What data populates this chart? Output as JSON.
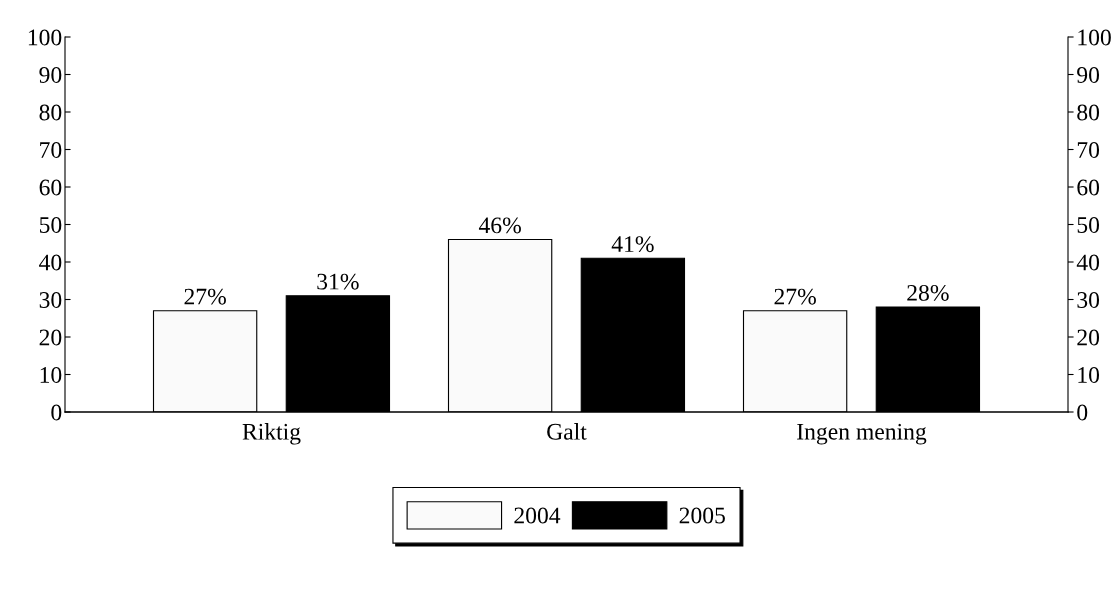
{
  "chart_data": {
    "type": "bar",
    "categories": [
      "Riktig",
      "Galt",
      "Ingen mening"
    ],
    "series": [
      {
        "name": "2004",
        "color": "#fafafa",
        "values": [
          27,
          46,
          27
        ],
        "value_labels": [
          "27%",
          "46%",
          "27%"
        ]
      },
      {
        "name": "2005",
        "color": "#000000",
        "values": [
          31,
          41,
          28
        ],
        "value_labels": [
          "31%",
          "41%",
          "28%"
        ]
      }
    ],
    "ylim": [
      0,
      100
    ],
    "yticks": [
      0,
      10,
      20,
      30,
      40,
      50,
      60,
      70,
      80,
      90,
      100
    ],
    "y2lim": [
      0,
      100
    ],
    "y2ticks": [
      0,
      10,
      20,
      30,
      40,
      50,
      60,
      70,
      80,
      90,
      100
    ],
    "grid": false,
    "legend": "bottom"
  }
}
